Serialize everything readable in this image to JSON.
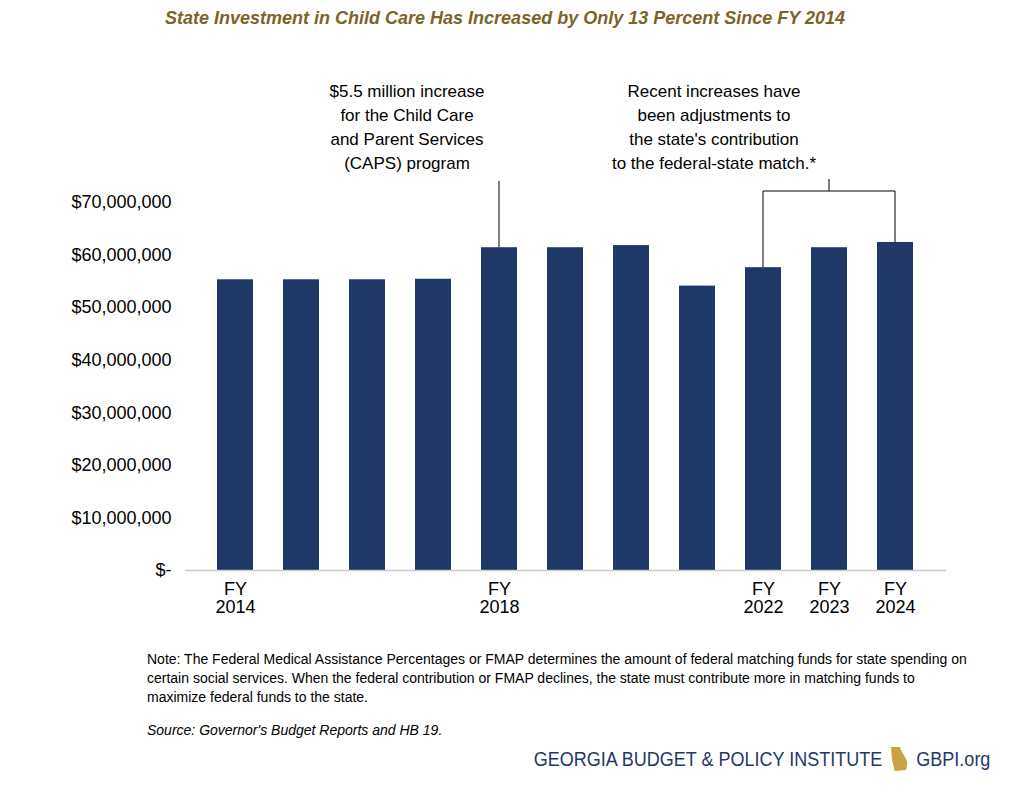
{
  "chart_data": {
    "type": "bar",
    "title": "State Investment in Child Care Has Increased by Only 13 Percent Since FY 2014",
    "categories": [
      "FY 2014",
      null,
      null,
      null,
      "FY 2018",
      null,
      null,
      null,
      "FY 2022",
      "FY 2023",
      "FY 2024"
    ],
    "values": [
      55300000,
      55300000,
      55300000,
      55400000,
      61400000,
      61400000,
      61800000,
      54100000,
      57600000,
      61400000,
      62400000
    ],
    "color": "#1f3868",
    "ylim": [
      0,
      70000000
    ],
    "yticks": [
      {
        "value": 0,
        "label": "$-"
      },
      {
        "value": 10000000,
        "label": "$10,000,000"
      },
      {
        "value": 20000000,
        "label": "$20,000,000"
      },
      {
        "value": 30000000,
        "label": "$30,000,000"
      },
      {
        "value": 40000000,
        "label": "$40,000,000"
      },
      {
        "value": 50000000,
        "label": "$50,000,000"
      },
      {
        "value": 60000000,
        "label": "$60,000,000"
      },
      {
        "value": 70000000,
        "label": "$70,000,000"
      }
    ],
    "grid": false,
    "annotations": [
      {
        "text": "$5.5 million increase\nfor the Child Care\nand Parent Services\n(CAPS) program",
        "targets": [
          "FY 2018"
        ]
      },
      {
        "text": "Recent increases have\nbeen adjustments to\nthe state's contribution\nto the federal-state match.*",
        "targets": [
          "FY 2022",
          "FY 2023",
          "FY 2024"
        ]
      }
    ],
    "note": "Note: The Federal Medical Assistance Percentages or FMAP determines the amount of federal matching funds for state spending on certain social services. When the federal contribution or FMAP declines, the state must contribute more in matching funds to maximize federal funds to the state.",
    "source": "Source: Governor's Budget Reports and HB 19.",
    "footer": {
      "organization": "GEORGIA BUDGET & POLICY INSTITUTE",
      "website": "GBPI.org"
    }
  }
}
